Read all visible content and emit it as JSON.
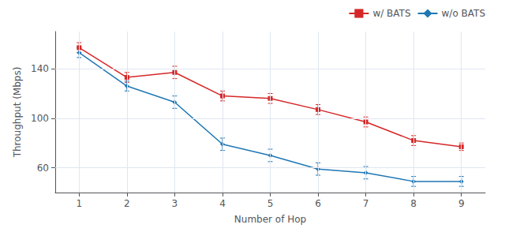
{
  "chart_data": {
    "type": "line",
    "xlabel": "Number of Hop",
    "ylabel": "Throughput (Mbps)",
    "x": [
      1,
      2,
      3,
      4,
      5,
      6,
      7,
      8,
      9
    ],
    "series": [
      {
        "name": "w/ BATS",
        "color": "#d62728",
        "marker": "square",
        "values": [
          157,
          133,
          137,
          118,
          116,
          107,
          97,
          82,
          77
        ],
        "errors": [
          4,
          4,
          5,
          4,
          4,
          4,
          4,
          4,
          3
        ]
      },
      {
        "name": "w/o BATS",
        "color": "#1f77b4",
        "marker": "diamond",
        "values": [
          153,
          126,
          113,
          79,
          70,
          59,
          56,
          49,
          49
        ],
        "errors": [
          4,
          4,
          5,
          5,
          5,
          5,
          5,
          4,
          4
        ]
      }
    ],
    "xlim": [
      0.5,
      9.5
    ],
    "xticks": [
      1,
      2,
      3,
      4,
      5,
      6,
      7,
      8,
      9
    ],
    "ylim": [
      40,
      170
    ],
    "yticks": [
      60,
      100,
      140
    ],
    "grid": true,
    "legend": "upper right"
  }
}
